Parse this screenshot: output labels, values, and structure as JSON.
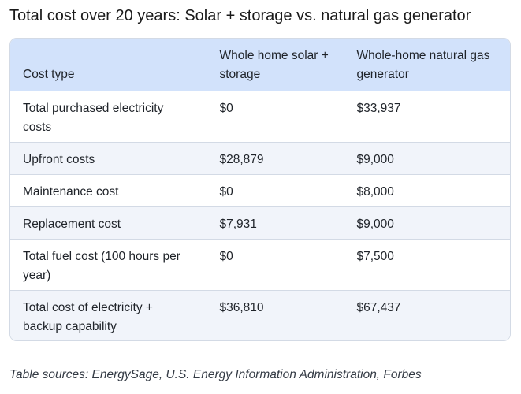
{
  "title": "Total cost over 20 years: Solar + storage vs. natural gas generator",
  "table": {
    "headers": [
      "Cost type",
      "Whole home solar + storage",
      "Whole-home natural gas generator"
    ],
    "rows": [
      [
        "Total purchased electricity costs",
        "$0",
        "$33,937"
      ],
      [
        "Upfront costs",
        "$28,879",
        "$9,000"
      ],
      [
        "Maintenance cost",
        "$0",
        "$8,000"
      ],
      [
        "Replacement cost",
        "$7,931",
        "$9,000"
      ],
      [
        "Total fuel cost (100 hours per year)",
        "$0",
        "$7,500"
      ],
      [
        "Total cost of electricity + backup capability",
        "$36,810",
        "$67,437"
      ]
    ]
  },
  "footer": "Table sources: EnergySage, U.S. Energy Information Administration, Forbes"
}
